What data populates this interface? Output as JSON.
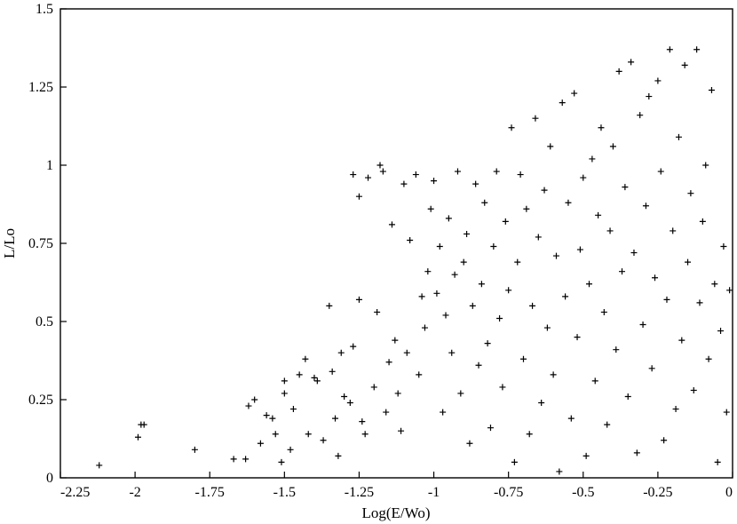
{
  "chart_data": {
    "type": "scatter",
    "title": "",
    "xlabel": "Log(E/Wo)",
    "ylabel": "L/Lo",
    "xlim": [
      -2.25,
      0
    ],
    "ylim": [
      0,
      1.5
    ],
    "xticks": [
      "-2.25",
      "-2",
      "-1.75",
      "-1.5",
      "-1.25",
      "-1",
      "-0.75",
      "-0.5",
      "-0.25",
      "0"
    ],
    "yticks": [
      "0",
      "0.25",
      "0.5",
      "0.75",
      "1",
      "1.25",
      "1.5"
    ],
    "grid": false,
    "marker": "plus",
    "series": [
      {
        "points": [
          [
            -2.12,
            0.04
          ],
          [
            -1.98,
            0.17
          ],
          [
            -1.99,
            0.13
          ],
          [
            -1.97,
            0.17
          ],
          [
            -1.8,
            0.09
          ],
          [
            -1.67,
            0.06
          ],
          [
            -1.63,
            0.06
          ],
          [
            -1.62,
            0.23
          ],
          [
            -1.6,
            0.25
          ],
          [
            -1.58,
            0.11
          ],
          [
            -1.56,
            0.2
          ],
          [
            -1.54,
            0.19
          ],
          [
            -1.53,
            0.14
          ],
          [
            -1.51,
            0.05
          ],
          [
            -1.5,
            0.27
          ],
          [
            -1.5,
            0.31
          ],
          [
            -1.48,
            0.09
          ],
          [
            -1.47,
            0.22
          ],
          [
            -1.45,
            0.33
          ],
          [
            -1.43,
            0.38
          ],
          [
            -1.42,
            0.14
          ],
          [
            -1.4,
            0.32
          ],
          [
            -1.39,
            0.31
          ],
          [
            -1.37,
            0.12
          ],
          [
            -1.35,
            0.55
          ],
          [
            -1.34,
            0.34
          ],
          [
            -1.33,
            0.19
          ],
          [
            -1.32,
            0.07
          ],
          [
            -1.31,
            0.4
          ],
          [
            -1.3,
            0.26
          ],
          [
            -1.28,
            0.24
          ],
          [
            -1.27,
            0.42
          ],
          [
            -1.27,
            0.97
          ],
          [
            -1.25,
            0.9
          ],
          [
            -1.25,
            0.57
          ],
          [
            -1.24,
            0.18
          ],
          [
            -1.23,
            0.14
          ],
          [
            -1.22,
            0.96
          ],
          [
            -1.2,
            0.29
          ],
          [
            -1.19,
            0.53
          ],
          [
            -1.18,
            1.0
          ],
          [
            -1.17,
            0.98
          ],
          [
            -1.16,
            0.21
          ],
          [
            -1.15,
            0.37
          ],
          [
            -1.14,
            0.81
          ],
          [
            -1.13,
            0.44
          ],
          [
            -1.12,
            0.27
          ],
          [
            -1.11,
            0.15
          ],
          [
            -1.1,
            0.94
          ],
          [
            -1.09,
            0.4
          ],
          [
            -1.08,
            0.76
          ],
          [
            -1.06,
            0.97
          ],
          [
            -1.05,
            0.33
          ],
          [
            -1.04,
            0.58
          ],
          [
            -1.03,
            0.48
          ],
          [
            -1.02,
            0.66
          ],
          [
            -1.01,
            0.86
          ],
          [
            -1.0,
            0.95
          ],
          [
            -0.99,
            0.59
          ],
          [
            -0.98,
            0.74
          ],
          [
            -0.97,
            0.21
          ],
          [
            -0.96,
            0.52
          ],
          [
            -0.95,
            0.83
          ],
          [
            -0.94,
            0.4
          ],
          [
            -0.93,
            0.65
          ],
          [
            -0.92,
            0.98
          ],
          [
            -0.91,
            0.27
          ],
          [
            -0.9,
            0.69
          ],
          [
            -0.89,
            0.78
          ],
          [
            -0.88,
            0.11
          ],
          [
            -0.87,
            0.55
          ],
          [
            -0.86,
            0.94
          ],
          [
            -0.85,
            0.36
          ],
          [
            -0.84,
            0.62
          ],
          [
            -0.83,
            0.88
          ],
          [
            -0.82,
            0.43
          ],
          [
            -0.81,
            0.16
          ],
          [
            -0.8,
            0.74
          ],
          [
            -0.79,
            0.98
          ],
          [
            -0.78,
            0.51
          ],
          [
            -0.77,
            0.29
          ],
          [
            -0.76,
            0.82
          ],
          [
            -0.75,
            0.6
          ],
          [
            -0.74,
            1.12
          ],
          [
            -0.73,
            0.05
          ],
          [
            -0.72,
            0.69
          ],
          [
            -0.71,
            0.97
          ],
          [
            -0.7,
            0.38
          ],
          [
            -0.69,
            0.86
          ],
          [
            -0.68,
            0.14
          ],
          [
            -0.67,
            0.55
          ],
          [
            -0.66,
            1.15
          ],
          [
            -0.65,
            0.77
          ],
          [
            -0.64,
            0.24
          ],
          [
            -0.63,
            0.92
          ],
          [
            -0.62,
            0.48
          ],
          [
            -0.61,
            1.06
          ],
          [
            -0.6,
            0.33
          ],
          [
            -0.59,
            0.71
          ],
          [
            -0.58,
            0.02
          ],
          [
            -0.57,
            1.2
          ],
          [
            -0.56,
            0.58
          ],
          [
            -0.55,
            0.88
          ],
          [
            -0.54,
            0.19
          ],
          [
            -0.53,
            1.23
          ],
          [
            -0.52,
            0.45
          ],
          [
            -0.51,
            0.73
          ],
          [
            -0.5,
            0.96
          ],
          [
            -0.49,
            0.07
          ],
          [
            -0.48,
            0.62
          ],
          [
            -0.47,
            1.02
          ],
          [
            -0.46,
            0.31
          ],
          [
            -0.45,
            0.84
          ],
          [
            -0.44,
            1.12
          ],
          [
            -0.43,
            0.53
          ],
          [
            -0.42,
            0.17
          ],
          [
            -0.41,
            0.79
          ],
          [
            -0.4,
            1.06
          ],
          [
            -0.39,
            0.41
          ],
          [
            -0.38,
            1.3
          ],
          [
            -0.37,
            0.66
          ],
          [
            -0.36,
            0.93
          ],
          [
            -0.35,
            0.26
          ],
          [
            -0.34,
            1.33
          ],
          [
            -0.33,
            0.72
          ],
          [
            -0.32,
            0.08
          ],
          [
            -0.31,
            1.16
          ],
          [
            -0.3,
            0.49
          ],
          [
            -0.29,
            0.87
          ],
          [
            -0.28,
            1.22
          ],
          [
            -0.27,
            0.35
          ],
          [
            -0.26,
            0.64
          ],
          [
            -0.25,
            1.27
          ],
          [
            -0.24,
            0.98
          ],
          [
            -0.23,
            0.12
          ],
          [
            -0.22,
            0.57
          ],
          [
            -0.21,
            1.37
          ],
          [
            -0.2,
            0.79
          ],
          [
            -0.19,
            0.22
          ],
          [
            -0.18,
            1.09
          ],
          [
            -0.17,
            0.44
          ],
          [
            -0.16,
            1.32
          ],
          [
            -0.15,
            0.69
          ],
          [
            -0.14,
            0.91
          ],
          [
            -0.13,
            0.28
          ],
          [
            -0.12,
            1.37
          ],
          [
            -0.11,
            0.56
          ],
          [
            -0.1,
            0.82
          ],
          [
            -0.09,
            1.0
          ],
          [
            -0.08,
            0.38
          ],
          [
            -0.07,
            1.24
          ],
          [
            -0.06,
            0.62
          ],
          [
            -0.05,
            0.05
          ],
          [
            -0.04,
            0.47
          ],
          [
            -0.03,
            0.74
          ],
          [
            -0.02,
            0.21
          ],
          [
            -0.01,
            0.6
          ]
        ]
      }
    ]
  }
}
